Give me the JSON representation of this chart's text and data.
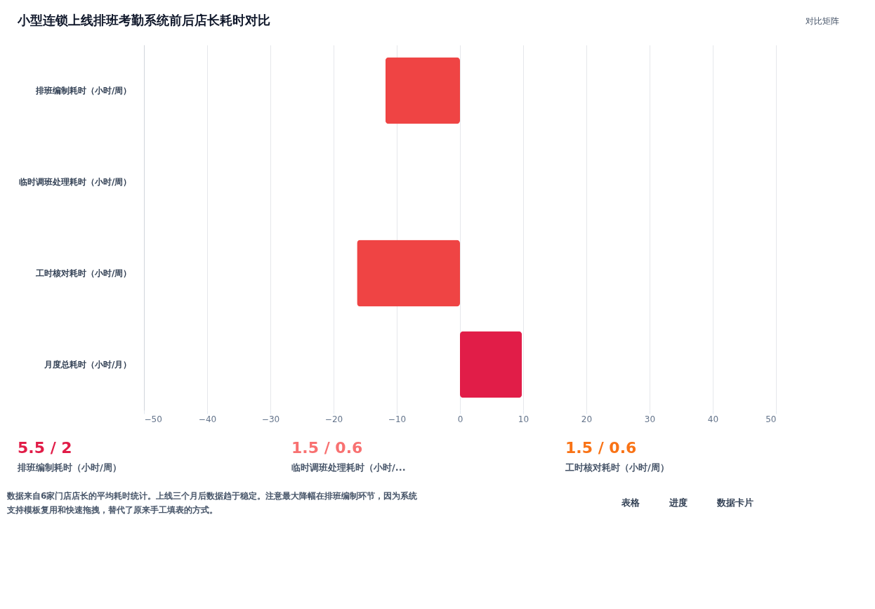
{
  "chart_data": {
    "type": "bar",
    "orientation": "horizontal",
    "title": "小型连锁上线排班考勤系统前后店长耗时对比",
    "categories": [
      "排班编制耗时（小时/周）",
      "临时调班处理耗时（小时/周）",
      "工时核对耗时（小时/周）",
      "月度总耗时（小时/月）"
    ],
    "values": [
      -11.8,
      0,
      -16.3,
      9.8
    ],
    "colors": [
      "#ef4444",
      "#ef4444",
      "#ef4444",
      "#e11d48"
    ],
    "xlim": [
      -50,
      50
    ],
    "xticks": [
      -50,
      -40,
      -30,
      -20,
      -10,
      0,
      10,
      20,
      30,
      40,
      50
    ],
    "grid": "x",
    "annotations": [
      "对比矩阵",
      "5.5 / 2",
      "排班编制耗时（小时/周）",
      "1.5 / 0.6",
      "临时调班处理耗时（小时/...",
      "1.5 / 0.6",
      "工时核对耗时（小时/周）",
      "数据来自6家门店店长的平均耗时统计。上线三个月后数据趋于稳定。注意最大降幅在排班编制环节，因为系统",
      "支持模板复用和快速拖拽，替代了原来手工填表的方式。",
      "表格",
      "进度",
      "数据卡片"
    ]
  }
}
